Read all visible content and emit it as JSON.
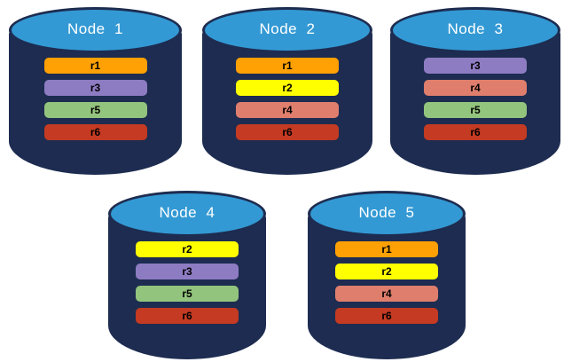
{
  "colors": {
    "cylinder_body": "#1d2c50",
    "cylinder_top": "#3399d4",
    "title_text": "#ffffff",
    "bar_text": "#000000",
    "background": "#ffffff"
  },
  "replica_colors": {
    "r1": "#ffa104",
    "r2": "#ffff00",
    "r3": "#8e7cc3",
    "r4": "#df7e6d",
    "r5": "#93c47d",
    "r6": "#c43a22"
  },
  "nodes": [
    {
      "label": "Node  1",
      "replicas": [
        "r1",
        "r3",
        "r5",
        "r6"
      ]
    },
    {
      "label": "Node  2",
      "replicas": [
        "r1",
        "r2",
        "r4",
        "r6"
      ]
    },
    {
      "label": "Node  3",
      "replicas": [
        "r3",
        "r4",
        "r5",
        "r6"
      ]
    },
    {
      "label": "Node  4",
      "replicas": [
        "r2",
        "r3",
        "r5",
        "r6"
      ]
    },
    {
      "label": "Node  5",
      "replicas": [
        "r1",
        "r2",
        "r4",
        "r6"
      ]
    }
  ]
}
